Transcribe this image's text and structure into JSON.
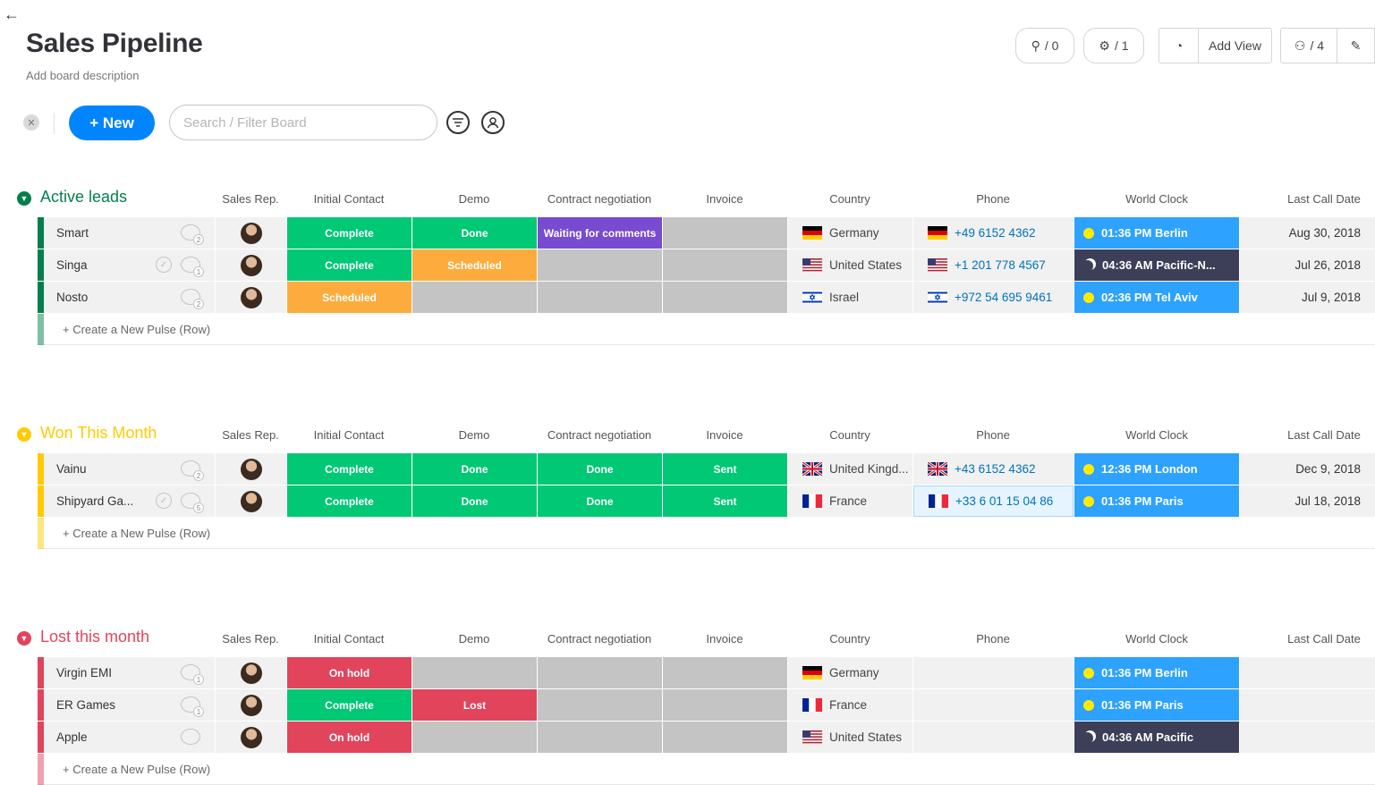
{
  "board": {
    "title": "Sales Pipeline",
    "description": "Add board description"
  },
  "top_actions": {
    "integrations_count": "/ 0",
    "automations_count": "/ 1",
    "add_view_label": "Add View",
    "members_count": "/ 4"
  },
  "toolbar": {
    "new_label": "+ New",
    "search_placeholder": "Search / Filter Board"
  },
  "columns": [
    "Sales Rep.",
    "Initial Contact",
    "Demo",
    "Contract negotiation",
    "Invoice",
    "Country",
    "Phone",
    "World Clock",
    "Last Call Date"
  ],
  "create_row_label": "+ Create a New Pulse (Row)",
  "colors": {
    "green": "#00c875",
    "orange": "#fdab3d",
    "purple": "#784bd1",
    "red": "#e2445c",
    "grey": "#c4c4c4",
    "blue": "#2da2ff",
    "dark": "#3c3f57",
    "group_active": "#037f4c",
    "group_won": "#ffcb00",
    "group_lost": "#e2445c"
  },
  "groups": [
    {
      "title": "Active leads",
      "rows": [
        {
          "name": "Smart",
          "updates": "2",
          "checked": false,
          "initial": "Complete",
          "demo": "Done",
          "contract": "Waiting for comments",
          "invoice": "",
          "country": "Germany",
          "flag": "de",
          "phone": "+49 6152 4362",
          "clock": "01:36 PM Berlin",
          "clock_mode": "day",
          "date": "Aug 30, 2018"
        },
        {
          "name": "Singa",
          "updates": "1",
          "checked": true,
          "initial": "Complete",
          "demo": "Scheduled",
          "contract": "",
          "invoice": "",
          "country": "United States",
          "flag": "us",
          "phone": "+1 201 778 4567",
          "clock": "04:36 AM Pacific-N...",
          "clock_mode": "night",
          "date": "Jul 26, 2018"
        },
        {
          "name": "Nosto",
          "updates": "2",
          "checked": false,
          "initial": "Scheduled",
          "demo": "",
          "contract": "",
          "invoice": "",
          "country": "Israel",
          "flag": "il",
          "phone": "+972 54 695 9461",
          "clock": "02:36 PM Tel Aviv",
          "clock_mode": "day",
          "date": "Jul 9, 2018"
        }
      ]
    },
    {
      "title": "Won This Month",
      "rows": [
        {
          "name": "Vainu",
          "updates": "2",
          "checked": false,
          "initial": "Complete",
          "demo": "Done",
          "contract": "Done",
          "invoice": "Sent",
          "country": "United Kingd...",
          "flag": "gb",
          "phone": "+43 6152 4362",
          "clock": "12:36 PM London",
          "clock_mode": "day",
          "date": "Dec 9, 2018"
        },
        {
          "name": "Shipyard Ga...",
          "updates": "5",
          "checked": true,
          "initial": "Complete",
          "demo": "Done",
          "contract": "Done",
          "invoice": "Sent",
          "country": "France",
          "flag": "fr",
          "phone": "+33 6 01 15 04 86",
          "clock": "01:36 PM Paris",
          "clock_mode": "day",
          "date": "Jul 18, 2018"
        }
      ]
    },
    {
      "title": "Lost this month",
      "rows": [
        {
          "name": "Virgin EMI",
          "updates": "1",
          "checked": false,
          "initial": "On hold",
          "demo": "",
          "contract": "",
          "invoice": "",
          "country": "Germany",
          "flag": "de",
          "phone": "",
          "clock": "01:36 PM Berlin",
          "clock_mode": "day",
          "date": ""
        },
        {
          "name": "ER Games",
          "updates": "1",
          "checked": false,
          "initial": "Complete",
          "demo": "Lost",
          "contract": "",
          "invoice": "",
          "country": "France",
          "flag": "fr",
          "phone": "",
          "clock": "01:36 PM Paris",
          "clock_mode": "day",
          "date": ""
        },
        {
          "name": "Apple",
          "updates": "",
          "checked": false,
          "initial": "On hold",
          "demo": "",
          "contract": "",
          "invoice": "",
          "country": "United States",
          "flag": "us",
          "phone": "",
          "clock": "04:36 AM Pacific",
          "clock_mode": "night",
          "date": ""
        }
      ]
    }
  ]
}
